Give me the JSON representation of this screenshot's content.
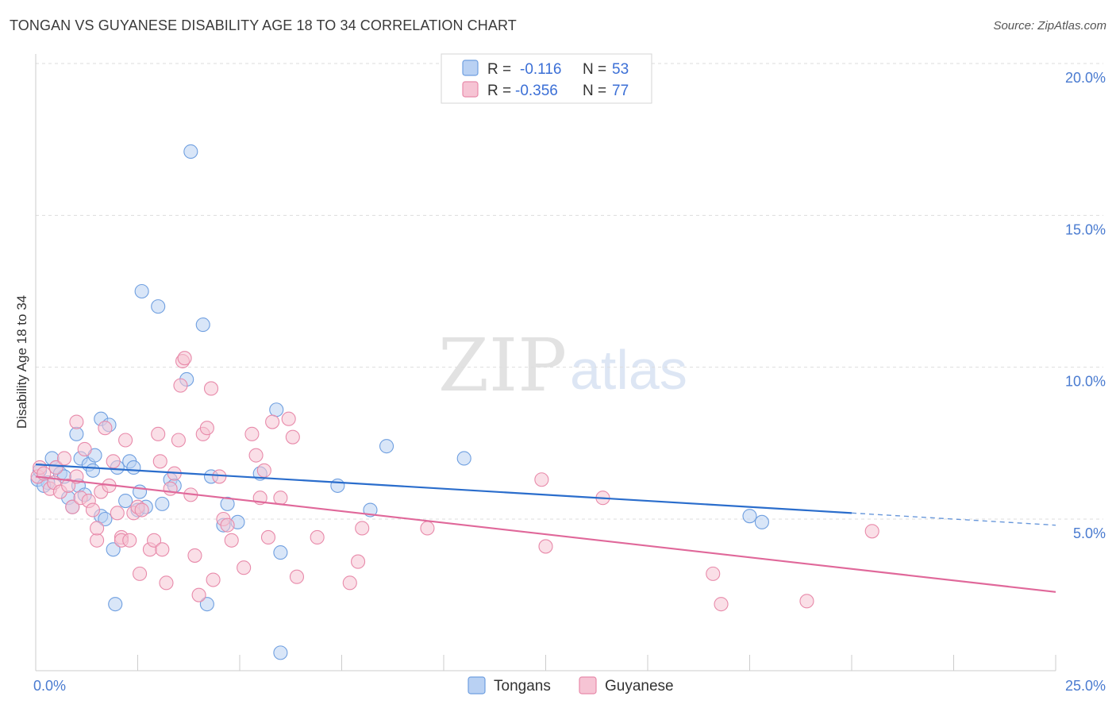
{
  "title": "TONGAN VS GUYANESE DISABILITY AGE 18 TO 34 CORRELATION CHART",
  "source": "Source: ZipAtlas.com",
  "watermark": {
    "part1": "ZIP",
    "part2": "atlas"
  },
  "colors": {
    "tongans": "#6f9fe0",
    "tongans_fill": "#b9d1f3",
    "tongans_line": "#2a6dcc",
    "guyanese": "#e88aaa",
    "guyanese_fill": "#f6c4d4",
    "guyanese_line": "#e0689a",
    "grid": "#dddddd",
    "tick_text": "#4a7bd0"
  },
  "legend": {
    "rows": [
      {
        "r_label": "R =",
        "r_value": "-0.116",
        "n_label": "N =",
        "n_value": "53"
      },
      {
        "r_label": "R =",
        "r_value": "-0.356",
        "n_label": "N =",
        "n_value": "77"
      }
    ]
  },
  "bottom_legend": [
    "Tongans",
    "Guyanese"
  ],
  "chart_data": {
    "type": "scatter",
    "title": "TONGAN VS GUYANESE DISABILITY AGE 18 TO 34 CORRELATION CHART",
    "xlabel": "",
    "ylabel": "Disability Age 18 to 34",
    "xlim": [
      0,
      25
    ],
    "ylim": [
      0.6,
      20.5
    ],
    "x_tick_labels": [
      "0.0%",
      "25.0%"
    ],
    "y_ticks": [
      5,
      10,
      15,
      20
    ],
    "y_tick_labels": [
      "5.0%",
      "10.0%",
      "15.0%",
      "20.0%"
    ],
    "grid": true,
    "legend_position": "top-center",
    "series": [
      {
        "name": "Tongans",
        "r": -0.116,
        "n": 53,
        "trend": {
          "x0": 0,
          "y0": 6.8,
          "x1": 20,
          "y1": 5.2,
          "dashed_to_x": 25,
          "dashed_to_y": 4.8
        },
        "points": [
          [
            0.05,
            6.3
          ],
          [
            0.1,
            6.6
          ],
          [
            0.3,
            6.2
          ],
          [
            0.4,
            7.0
          ],
          [
            0.5,
            6.7
          ],
          [
            0.6,
            6.5
          ],
          [
            0.7,
            6.4
          ],
          [
            0.8,
            5.7
          ],
          [
            0.9,
            5.4
          ],
          [
            1.0,
            7.8
          ],
          [
            1.05,
            6.1
          ],
          [
            1.1,
            7.0
          ],
          [
            1.2,
            5.8
          ],
          [
            1.3,
            6.8
          ],
          [
            1.4,
            6.6
          ],
          [
            1.45,
            7.1
          ],
          [
            1.6,
            5.1
          ],
          [
            1.7,
            5.0
          ],
          [
            1.6,
            8.3
          ],
          [
            1.8,
            8.1
          ],
          [
            1.9,
            4.0
          ],
          [
            1.95,
            2.2
          ],
          [
            2.0,
            6.7
          ],
          [
            2.2,
            5.6
          ],
          [
            2.3,
            6.9
          ],
          [
            2.4,
            6.7
          ],
          [
            2.5,
            5.3
          ],
          [
            2.55,
            5.9
          ],
          [
            2.7,
            5.4
          ],
          [
            2.6,
            12.5
          ],
          [
            3.0,
            12.0
          ],
          [
            3.1,
            5.5
          ],
          [
            3.3,
            6.3
          ],
          [
            3.4,
            6.1
          ],
          [
            3.7,
            9.6
          ],
          [
            3.8,
            17.1
          ],
          [
            4.1,
            11.4
          ],
          [
            4.2,
            2.2
          ],
          [
            4.3,
            6.4
          ],
          [
            4.6,
            4.8
          ],
          [
            4.7,
            5.5
          ],
          [
            4.95,
            4.9
          ],
          [
            5.5,
            6.5
          ],
          [
            5.9,
            8.6
          ],
          [
            6.0,
            3.9
          ],
          [
            6.0,
            0.6
          ],
          [
            7.4,
            6.1
          ],
          [
            8.2,
            5.3
          ],
          [
            8.6,
            7.4
          ],
          [
            10.5,
            7.0
          ],
          [
            17.5,
            5.1
          ],
          [
            17.8,
            4.9
          ],
          [
            0.2,
            6.1
          ]
        ]
      },
      {
        "name": "Guyanese",
        "r": -0.356,
        "n": 77,
        "trend": {
          "x0": 0,
          "y0": 6.4,
          "x1": 25,
          "y1": 2.6
        },
        "points": [
          [
            0.05,
            6.4
          ],
          [
            0.1,
            6.7
          ],
          [
            0.2,
            6.5
          ],
          [
            0.35,
            6.0
          ],
          [
            0.45,
            6.2
          ],
          [
            0.5,
            6.7
          ],
          [
            0.6,
            5.9
          ],
          [
            0.7,
            7.0
          ],
          [
            0.8,
            6.1
          ],
          [
            0.9,
            5.4
          ],
          [
            1.0,
            6.4
          ],
          [
            1.0,
            8.2
          ],
          [
            1.1,
            5.7
          ],
          [
            1.2,
            7.3
          ],
          [
            1.3,
            5.6
          ],
          [
            1.4,
            5.3
          ],
          [
            1.5,
            4.3
          ],
          [
            1.5,
            4.7
          ],
          [
            1.6,
            5.9
          ],
          [
            1.7,
            8.0
          ],
          [
            1.8,
            6.1
          ],
          [
            1.9,
            6.9
          ],
          [
            2.0,
            5.2
          ],
          [
            2.1,
            4.4
          ],
          [
            2.1,
            4.3
          ],
          [
            2.2,
            7.6
          ],
          [
            2.3,
            4.3
          ],
          [
            2.4,
            5.2
          ],
          [
            2.5,
            5.4
          ],
          [
            2.55,
            3.2
          ],
          [
            2.6,
            5.3
          ],
          [
            2.8,
            4.0
          ],
          [
            2.9,
            4.3
          ],
          [
            3.0,
            7.8
          ],
          [
            3.05,
            6.9
          ],
          [
            3.1,
            4.0
          ],
          [
            3.2,
            2.9
          ],
          [
            3.3,
            6.0
          ],
          [
            3.4,
            6.5
          ],
          [
            3.5,
            7.6
          ],
          [
            3.55,
            9.4
          ],
          [
            3.6,
            10.2
          ],
          [
            3.65,
            10.3
          ],
          [
            3.8,
            5.8
          ],
          [
            3.9,
            3.8
          ],
          [
            4.0,
            2.5
          ],
          [
            4.1,
            7.8
          ],
          [
            4.2,
            8.0
          ],
          [
            4.3,
            9.3
          ],
          [
            4.35,
            3.0
          ],
          [
            4.5,
            6.4
          ],
          [
            4.6,
            5.0
          ],
          [
            4.7,
            4.8
          ],
          [
            4.8,
            4.3
          ],
          [
            5.1,
            3.4
          ],
          [
            5.3,
            7.8
          ],
          [
            5.4,
            7.1
          ],
          [
            5.5,
            5.7
          ],
          [
            5.6,
            6.6
          ],
          [
            5.7,
            4.4
          ],
          [
            5.8,
            8.2
          ],
          [
            6.0,
            5.7
          ],
          [
            6.2,
            8.3
          ],
          [
            6.3,
            7.7
          ],
          [
            6.4,
            3.1
          ],
          [
            6.9,
            4.4
          ],
          [
            7.7,
            2.9
          ],
          [
            7.9,
            3.6
          ],
          [
            8.0,
            4.7
          ],
          [
            9.6,
            4.7
          ],
          [
            12.4,
            6.3
          ],
          [
            12.5,
            4.1
          ],
          [
            13.9,
            5.7
          ],
          [
            16.6,
            3.2
          ],
          [
            16.8,
            2.2
          ],
          [
            18.9,
            2.3
          ],
          [
            20.5,
            4.6
          ]
        ]
      }
    ]
  }
}
